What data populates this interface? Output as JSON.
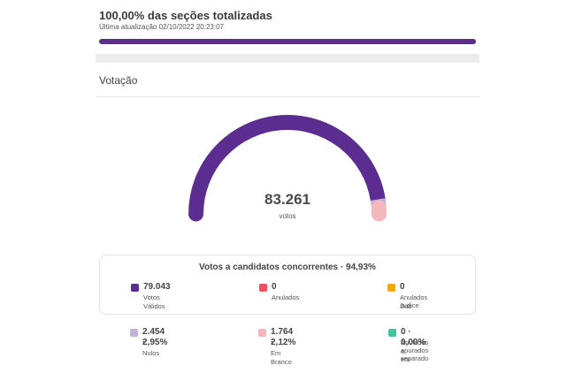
{
  "progress": {
    "title": "100,00% das seções totalizadas",
    "updated": "Última atualização 02/10/2022 20:23:07",
    "fraction": 1.0,
    "color": "#5c2d91"
  },
  "section_title": "Votação",
  "gauge": {
    "total": "83.261",
    "total_label": "votos",
    "segments": [
      {
        "name": "Votos Válidos",
        "fraction": 0.9493,
        "color": "#5c2d91"
      },
      {
        "name": "Nulos",
        "fraction": 0.0295,
        "color": "#c4b0d8"
      },
      {
        "name": "Em Branco",
        "fraction": 0.0212,
        "color": "#f4b7bd"
      }
    ]
  },
  "box_title": "Votos a candidatos concorrentes · 94,93%",
  "stats": {
    "valid": {
      "value": "79.043",
      "label": "Votos Válidos",
      "color": "#5c2d91"
    },
    "annulled": {
      "value": "0",
      "label": "Anulados",
      "color": "#f24e5e"
    },
    "subjudice": {
      "value": "0",
      "label_1": "Anulados Sub",
      "label_2": "Judice",
      "color": "#f5a800"
    },
    "null": {
      "value_1": "2.454 ·",
      "value_2": "2,95%",
      "label": "Nulos",
      "color": "#c4b0d8"
    },
    "blank": {
      "value_1": "1.764 ·",
      "value_2": "2,12%",
      "label": "Em Branco",
      "color": "#f4b7bd"
    },
    "separate": {
      "value": "0 · 0,00%",
      "label_1": "Anulados e",
      "label_2": "apurados em",
      "label_3": "separado",
      "color": "#3fc49b"
    }
  }
}
